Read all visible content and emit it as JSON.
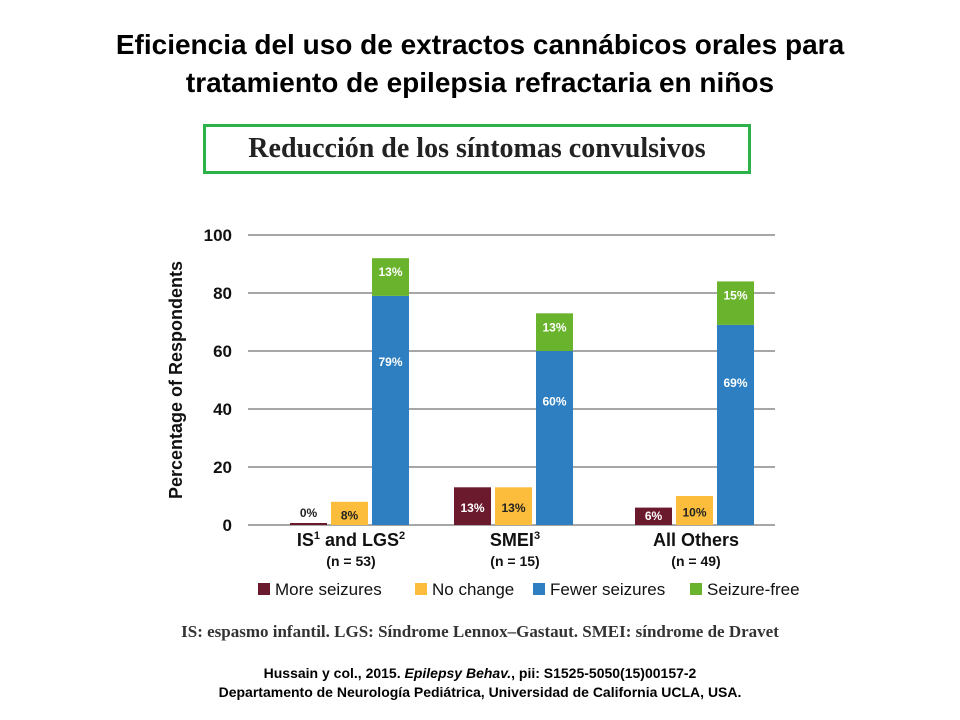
{
  "title": {
    "line1": "Eficiencia del uso de extractos cannábicos orales para",
    "line2": "tratamiento de epilepsia refractaria en niños"
  },
  "subtitle": "Reducción de los síntomas convulsivos",
  "footnote": "IS: espasmo infantil. LGS: Síndrome Lennox–Gastaut. SMEI: síndrome de Dravet",
  "citation": {
    "authors": "Hussain y col., 2015.",
    "journal": "Epilepsy Behav.",
    "ref": ", pii: S1525-5050(15)00157-2",
    "line2": "Departamento de Neurología Pediátrica, Universidad de California UCLA, USA."
  },
  "chart_data": {
    "type": "bar",
    "ylabel": "Percentage of Respondents",
    "ylim": [
      0,
      100
    ],
    "yticks": [
      0,
      20,
      40,
      60,
      80,
      100
    ],
    "grid": true,
    "legend_position": "bottom",
    "groups": [
      {
        "label": "IS",
        "sup1": "1",
        "mid": " and LGS",
        "sup2": "2",
        "n": "(n = 53)"
      },
      {
        "label": "SMEI",
        "sup1": "3",
        "mid": "",
        "sup2": "",
        "n": "(n = 15)"
      },
      {
        "label": "All Others",
        "sup1": "",
        "mid": "",
        "sup2": "",
        "n": "(n = 49)"
      }
    ],
    "series": [
      {
        "name": "More seizures",
        "color": "#6b1a2e",
        "values": [
          0,
          13,
          6
        ],
        "labels": [
          "0%",
          "13%",
          "6%"
        ],
        "label_pos": [
          "above",
          "inside",
          "inside"
        ]
      },
      {
        "name": "No change",
        "color": "#fbbd3b",
        "values": [
          8,
          13,
          10
        ],
        "labels": [
          "8%",
          "13%",
          "10%"
        ],
        "label_pos": [
          "inside",
          "inside",
          "inside"
        ]
      },
      {
        "name": "Fewer seizures",
        "color": "#2e7fc1",
        "values": [
          79,
          60,
          69
        ],
        "labels": [
          "79%",
          "60%",
          "69%"
        ],
        "label_pos": [
          "inside",
          "inside",
          "inside"
        ]
      },
      {
        "name": "Seizure-free",
        "color": "#6ab42d",
        "values": [
          13,
          13,
          15
        ],
        "labels": [
          "13%",
          "13%",
          "15%"
        ],
        "label_pos": [
          "inside",
          "inside",
          "inside"
        ]
      }
    ],
    "stack": {
      "on_series": 2,
      "stacked_series": 3
    }
  }
}
